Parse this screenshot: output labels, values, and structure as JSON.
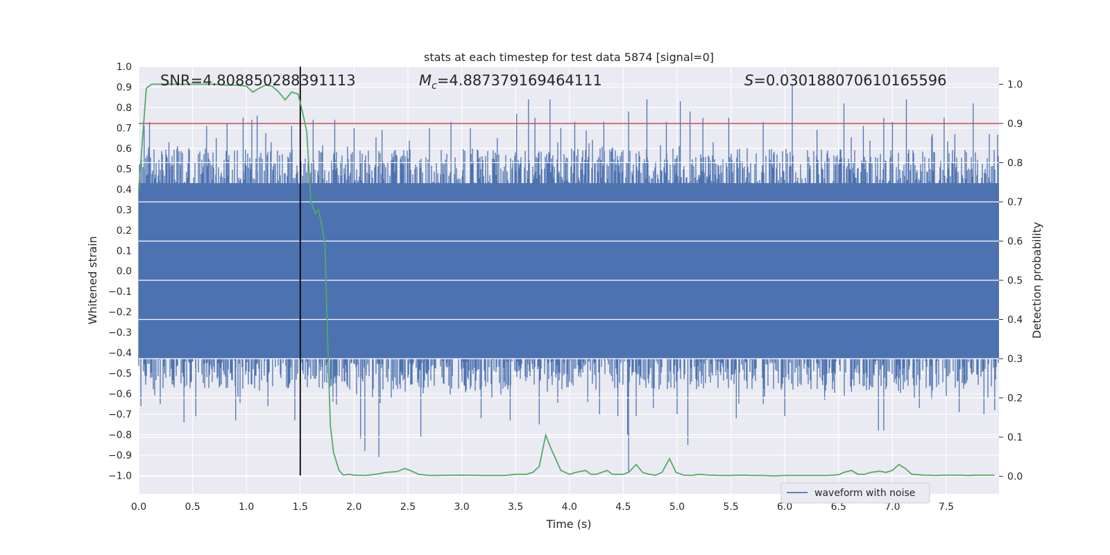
{
  "chart_data": {
    "type": "line",
    "title": "stats at each timestep for test data 5874 [signal=0]",
    "xlabel": "Time (s)",
    "ylabel": "Whitened strain",
    "ylabel_right": "Detection probability",
    "xlim": [
      0.0,
      7.99
    ],
    "ylim": [
      -1.09,
      1.0
    ],
    "ylim_right": [
      -0.045,
      1.045
    ],
    "x_ticks": [
      0.0,
      0.5,
      1.0,
      1.5,
      2.0,
      2.5,
      3.0,
      3.5,
      4.0,
      4.5,
      5.0,
      5.5,
      6.0,
      6.5,
      7.0,
      7.5
    ],
    "x_tick_labels": [
      "0.0",
      "0.5",
      "1.0",
      "1.5",
      "2.0",
      "2.5",
      "3.0",
      "3.5",
      "4.0",
      "4.5",
      "5.0",
      "5.5",
      "6.0",
      "6.5",
      "7.0",
      "7.5"
    ],
    "y_ticks": [
      1.0,
      0.9,
      0.8,
      0.7,
      0.6,
      0.5,
      0.4,
      0.3,
      0.2,
      0.1,
      0.0,
      -0.1,
      -0.2,
      -0.3,
      -0.4,
      -0.5,
      -0.6,
      -0.7,
      -0.8,
      -0.9,
      -1.0
    ],
    "y_tick_labels": [
      "1.0",
      "0.9",
      "0.8",
      "0.7",
      "0.6",
      "0.5",
      "0.4",
      "0.3",
      "0.2",
      "0.1",
      "0.0",
      "−0.1",
      "−0.2",
      "−0.3",
      "−0.4",
      "−0.5",
      "−0.6",
      "−0.7",
      "−0.8",
      "−0.9",
      "−1.0"
    ],
    "y_right_ticks": [
      1.0,
      0.9,
      0.8,
      0.7,
      0.6,
      0.5,
      0.4,
      0.3,
      0.2,
      0.1,
      0.0
    ],
    "y_right_tick_labels": [
      "1.0",
      "0.9",
      "0.8",
      "0.7",
      "0.6",
      "0.5",
      "0.4",
      "0.3",
      "0.2",
      "0.1",
      "0.0"
    ],
    "grid": true,
    "legend": {
      "label": "waveform with noise",
      "placement": "lower right"
    },
    "annotations": {
      "snr": "SNR=4.808850288391113",
      "mc_symbol": "M",
      "mc_sub": "c",
      "mc_value": "=4.887379169464111",
      "s_symbol": "S",
      "s_value": "=0.030188070610165596"
    },
    "threshold": {
      "value": 0.9,
      "axis": "right",
      "color": "#c44e52"
    },
    "marker_line": {
      "x": 1.5,
      "ymin": -1.0,
      "ymax": 1.0,
      "color": "#000000"
    },
    "waveform": {
      "name": "waveform with noise",
      "color": "#4c72b0",
      "duration": 8.0,
      "core_band": [
        -0.43,
        0.43
      ],
      "spikes_max": [
        [
          0.05,
          0.71
        ],
        [
          0.1,
          0.73
        ],
        [
          0.28,
          0.63
        ],
        [
          0.36,
          0.61
        ],
        [
          0.63,
          0.71
        ],
        [
          0.72,
          0.65
        ],
        [
          0.82,
          0.72
        ],
        [
          0.97,
          0.75
        ],
        [
          1.05,
          0.74
        ],
        [
          1.1,
          0.76
        ],
        [
          1.23,
          0.63
        ],
        [
          1.42,
          0.71
        ],
        [
          1.62,
          0.74
        ],
        [
          1.82,
          0.74
        ],
        [
          2.0,
          0.7
        ],
        [
          2.26,
          0.69
        ],
        [
          2.7,
          0.7
        ],
        [
          2.9,
          0.73
        ],
        [
          3.08,
          0.7
        ],
        [
          3.33,
          0.65
        ],
        [
          3.51,
          0.77
        ],
        [
          3.62,
          0.84
        ],
        [
          3.68,
          0.75
        ],
        [
          3.82,
          0.84
        ],
        [
          3.92,
          0.7
        ],
        [
          4.05,
          0.73
        ],
        [
          4.32,
          0.73
        ],
        [
          4.55,
          0.78
        ],
        [
          4.72,
          0.84
        ],
        [
          4.9,
          0.73
        ],
        [
          5.03,
          0.83
        ],
        [
          5.12,
          0.78
        ],
        [
          5.24,
          0.75
        ],
        [
          5.48,
          0.75
        ],
        [
          5.8,
          0.73
        ],
        [
          6.07,
          0.91
        ],
        [
          6.3,
          0.69
        ],
        [
          6.55,
          0.82
        ],
        [
          6.73,
          0.71
        ],
        [
          6.92,
          0.75
        ],
        [
          7.0,
          0.73
        ],
        [
          7.13,
          0.84
        ],
        [
          7.37,
          0.67
        ],
        [
          7.48,
          0.75
        ],
        [
          7.58,
          0.67
        ],
        [
          7.75,
          0.82
        ],
        [
          7.9,
          0.67
        ]
      ],
      "spikes_min": [
        [
          0.02,
          -0.66
        ],
        [
          0.2,
          -0.65
        ],
        [
          0.42,
          -0.74
        ],
        [
          0.53,
          -0.71
        ],
        [
          0.9,
          -0.73
        ],
        [
          1.2,
          -0.66
        ],
        [
          1.45,
          -0.73
        ],
        [
          2.06,
          -0.82
        ],
        [
          2.1,
          -0.88
        ],
        [
          2.23,
          -0.91
        ],
        [
          2.62,
          -0.81
        ],
        [
          3.18,
          -0.72
        ],
        [
          3.45,
          -0.73
        ],
        [
          3.72,
          -0.75
        ],
        [
          4.17,
          -0.64
        ],
        [
          4.28,
          -0.7
        ],
        [
          4.45,
          -0.71
        ],
        [
          4.54,
          -0.8
        ],
        [
          4.55,
          -0.98
        ],
        [
          4.62,
          -0.71
        ],
        [
          4.78,
          -0.67
        ],
        [
          5.0,
          -0.7
        ],
        [
          5.1,
          -0.85
        ],
        [
          5.55,
          -0.72
        ],
        [
          5.8,
          -0.65
        ],
        [
          6.0,
          -0.71
        ],
        [
          6.37,
          -0.63
        ],
        [
          6.62,
          -0.59
        ],
        [
          6.87,
          -0.78
        ],
        [
          6.92,
          -0.78
        ],
        [
          7.25,
          -0.67
        ],
        [
          7.5,
          -0.61
        ],
        [
          7.62,
          -0.69
        ],
        [
          7.85,
          -0.7
        ],
        [
          7.95,
          -0.68
        ]
      ]
    },
    "detection_probability": {
      "name": "detection probability",
      "color": "#55a868",
      "axis": "right",
      "x": [
        0.0,
        0.07,
        0.12,
        0.2,
        0.3,
        0.4,
        0.5,
        0.6,
        0.7,
        0.8,
        0.9,
        1.0,
        1.06,
        1.12,
        1.18,
        1.24,
        1.3,
        1.36,
        1.42,
        1.48,
        1.52,
        1.56,
        1.6,
        1.64,
        1.67,
        1.7,
        1.73,
        1.76,
        1.78,
        1.81,
        1.86,
        1.9,
        1.95,
        2.0,
        2.1,
        2.2,
        2.3,
        2.4,
        2.47,
        2.52,
        2.6,
        2.7,
        3.0,
        3.2,
        3.4,
        3.5,
        3.6,
        3.66,
        3.72,
        3.78,
        3.83,
        3.88,
        3.92,
        4.0,
        4.06,
        4.15,
        4.2,
        4.25,
        4.3,
        4.35,
        4.4,
        4.45,
        4.5,
        4.55,
        4.62,
        4.68,
        4.74,
        4.8,
        4.86,
        4.93,
        4.99,
        5.06,
        5.13,
        5.2,
        5.3,
        5.4,
        5.5,
        5.6,
        5.7,
        5.8,
        5.9,
        6.0,
        6.2,
        6.4,
        6.5,
        6.55,
        6.62,
        6.68,
        6.74,
        6.8,
        6.88,
        6.94,
        7.0,
        7.06,
        7.12,
        7.18,
        7.24,
        7.3,
        7.4,
        7.5,
        7.6,
        7.7,
        7.8,
        7.95
      ],
      "y": [
        0.73,
        0.99,
        1.0,
        1.0,
        1.0,
        1.0,
        1.0,
        1.0,
        1.0,
        0.998,
        0.998,
        0.995,
        0.98,
        0.99,
        0.998,
        0.995,
        0.98,
        0.96,
        0.98,
        0.975,
        0.93,
        0.88,
        0.7,
        0.67,
        0.68,
        0.64,
        0.59,
        0.3,
        0.13,
        0.06,
        0.015,
        0.003,
        0.005,
        0.003,
        0.002,
        0.005,
        0.01,
        0.012,
        0.02,
        0.015,
        0.005,
        0.002,
        0.003,
        0.002,
        0.002,
        0.005,
        0.005,
        0.01,
        0.025,
        0.105,
        0.07,
        0.04,
        0.015,
        0.005,
        0.01,
        0.015,
        0.005,
        0.005,
        0.01,
        0.015,
        0.005,
        0.005,
        0.005,
        0.01,
        0.03,
        0.01,
        0.005,
        0.003,
        0.01,
        0.045,
        0.01,
        0.003,
        0.002,
        0.005,
        0.003,
        0.002,
        0.002,
        0.003,
        0.002,
        0.002,
        0.001,
        0.002,
        0.002,
        0.002,
        0.004,
        0.01,
        0.015,
        0.005,
        0.005,
        0.01,
        0.013,
        0.01,
        0.015,
        0.03,
        0.02,
        0.005,
        0.004,
        0.003,
        0.002,
        0.003,
        0.003,
        0.002,
        0.003,
        0.003
      ]
    }
  }
}
